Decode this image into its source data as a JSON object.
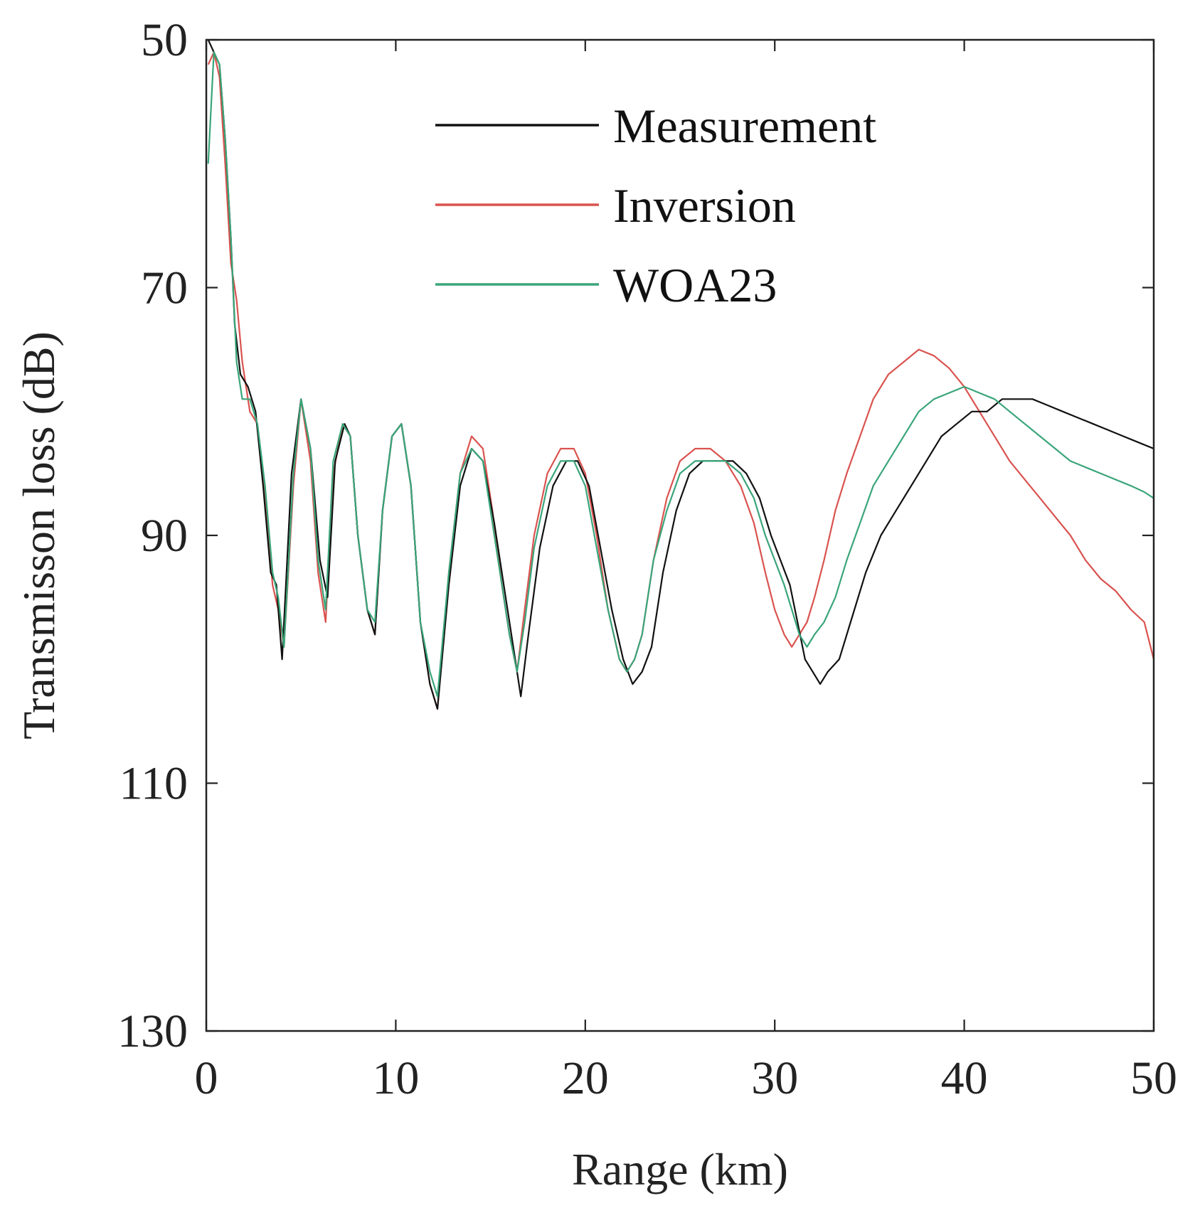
{
  "chart_data": {
    "type": "line",
    "title": "",
    "xlabel": "Range (km)",
    "ylabel": "Transmisson loss (dB)",
    "xlim": [
      0,
      50
    ],
    "ylim": [
      50,
      130
    ],
    "y_reversed": true,
    "xticks": [
      0,
      10,
      20,
      30,
      40,
      50
    ],
    "yticks": [
      50,
      70,
      90,
      110,
      130
    ],
    "xtick_labels": [
      "0",
      "10",
      "20",
      "30",
      "40",
      "50"
    ],
    "ytick_labels": [
      "50",
      "70",
      "90",
      "110",
      "130"
    ],
    "grid": false,
    "legend_position": "top-center",
    "legend": [
      "Measurement",
      "Inversion",
      "WOA23"
    ],
    "colors": {
      "Measurement": "#111111",
      "Inversion": "#d9534f",
      "WOA23": "#3aa57a"
    },
    "series": [
      {
        "name": "Measurement",
        "x": [
          0.1,
          0.4,
          0.7,
          1.0,
          1.3,
          1.5,
          1.8,
          2.2,
          2.6,
          3.0,
          3.4,
          3.7,
          4.0,
          4.5,
          5.0,
          5.5,
          6.0,
          6.4,
          6.8,
          7.3,
          7.6,
          8.0,
          8.5,
          8.9,
          9.3,
          9.8,
          10.3,
          10.8,
          11.3,
          11.8,
          12.2,
          12.8,
          13.4,
          14.0,
          14.6,
          15.2,
          15.7,
          16.2,
          16.6,
          17.0,
          17.6,
          18.3,
          19.0,
          19.6,
          20.2,
          20.8,
          21.4,
          22.0,
          22.5,
          23.0,
          23.5,
          24.1,
          24.8,
          25.5,
          26.2,
          27.0,
          27.8,
          28.5,
          29.2,
          29.8,
          30.3,
          30.8,
          31.2,
          31.6,
          32.0,
          32.4,
          32.8,
          33.4,
          34.0,
          34.8,
          35.6,
          36.4,
          37.2,
          38.0,
          38.8,
          39.6,
          40.4,
          41.2,
          42.0,
          42.8,
          43.6,
          44.4,
          45.2,
          46.0,
          46.8,
          47.6,
          48.4,
          49.2,
          50.0
        ],
        "y": [
          50,
          51,
          52,
          58,
          66,
          73,
          77,
          78,
          80,
          86,
          93,
          94,
          100,
          85,
          79,
          83,
          92,
          95,
          84,
          81,
          82,
          90,
          96,
          98,
          88,
          82,
          81,
          86,
          97,
          102,
          104,
          94,
          86,
          83,
          84,
          89,
          94,
          99,
          103,
          98,
          91,
          86,
          84,
          84,
          86,
          91,
          96,
          100,
          102,
          101,
          99,
          93,
          88,
          85,
          84,
          84,
          84,
          85,
          87,
          90,
          92,
          94,
          97,
          100,
          101,
          102,
          101,
          100,
          97,
          93,
          90,
          88,
          86,
          84,
          82,
          81,
          80,
          80,
          79,
          79,
          79,
          79.5,
          80,
          80.5,
          81,
          81.5,
          82,
          82.5,
          83
        ]
      },
      {
        "name": "Inversion",
        "x": [
          0.1,
          0.4,
          0.7,
          1.0,
          1.3,
          1.6,
          1.9,
          2.3,
          2.7,
          3.1,
          3.5,
          3.8,
          4.1,
          4.6,
          5.0,
          5.5,
          5.9,
          6.3,
          6.7,
          7.2,
          7.6,
          8.0,
          8.5,
          8.9,
          9.3,
          9.8,
          10.3,
          10.8,
          11.3,
          11.8,
          12.2,
          12.8,
          13.4,
          14.0,
          14.6,
          15.1,
          15.6,
          16.0,
          16.4,
          16.8,
          17.3,
          18.0,
          18.7,
          19.4,
          20.0,
          20.6,
          21.2,
          21.8,
          22.2,
          22.6,
          23.0,
          23.6,
          24.3,
          25.0,
          25.8,
          26.6,
          27.4,
          28.2,
          28.9,
          29.5,
          30.0,
          30.5,
          30.9,
          31.3,
          31.7,
          32.1,
          32.6,
          33.2,
          33.8,
          34.5,
          35.2,
          36.0,
          36.8,
          37.6,
          38.4,
          39.2,
          40.0,
          40.8,
          41.6,
          42.4,
          43.2,
          44.0,
          44.8,
          45.6,
          46.4,
          47.2,
          48.0,
          48.8,
          49.5,
          50.0
        ],
        "y": [
          52,
          51,
          53,
          60,
          68,
          71,
          76,
          80,
          81,
          87,
          94,
          96,
          99,
          86,
          79,
          84,
          93,
          97,
          85,
          81,
          82,
          90,
          96,
          98,
          88,
          82,
          81,
          86,
          97,
          102,
          104,
          93,
          85,
          82,
          83,
          88,
          94,
          98,
          101,
          96,
          90,
          85,
          83,
          83,
          85,
          90,
          96,
          100,
          101,
          100,
          98,
          92,
          87,
          84,
          83,
          83,
          84,
          86,
          89,
          93,
          96,
          98,
          99,
          98,
          97,
          95,
          92,
          88,
          85,
          82,
          79,
          77,
          76,
          75,
          75.5,
          76.5,
          78,
          80,
          82,
          84,
          85.5,
          87,
          88.5,
          90,
          92,
          93.5,
          94.5,
          96,
          97,
          100
        ]
      },
      {
        "name": "WOA23",
        "x": [
          0.1,
          0.4,
          0.7,
          1.0,
          1.3,
          1.6,
          1.9,
          2.3,
          2.7,
          3.1,
          3.5,
          3.8,
          4.1,
          4.6,
          5.0,
          5.5,
          5.9,
          6.3,
          6.7,
          7.2,
          7.6,
          8.0,
          8.5,
          8.9,
          9.3,
          9.8,
          10.3,
          10.8,
          11.3,
          11.8,
          12.2,
          12.8,
          13.4,
          14.0,
          14.6,
          15.1,
          15.6,
          16.0,
          16.4,
          16.8,
          17.3,
          18.0,
          18.7,
          19.4,
          20.0,
          20.6,
          21.2,
          21.8,
          22.2,
          22.6,
          23.0,
          23.6,
          24.3,
          25.0,
          25.8,
          26.6,
          27.4,
          28.2,
          28.9,
          29.5,
          30.0,
          30.5,
          30.9,
          31.3,
          31.7,
          32.1,
          32.6,
          33.2,
          33.8,
          34.5,
          35.2,
          36.0,
          36.8,
          37.6,
          38.4,
          39.2,
          40.0,
          40.8,
          41.6,
          42.4,
          43.2,
          44.0,
          44.8,
          45.6,
          46.4,
          47.2,
          48.0,
          48.8,
          49.5,
          50.0
        ],
        "y": [
          60,
          51,
          52,
          58,
          66,
          76,
          79,
          79,
          81,
          86,
          93,
          95,
          99,
          85,
          79,
          83,
          92,
          96,
          84,
          81,
          82,
          90,
          96,
          97,
          88,
          82,
          81,
          86,
          97,
          101,
          103,
          93,
          85,
          83,
          84,
          89,
          94,
          98,
          101,
          97,
          91,
          86,
          84,
          84,
          86,
          91,
          96,
          100,
          101,
          100,
          98,
          92,
          88,
          85,
          84,
          84,
          84,
          85,
          87,
          90,
          92,
          94,
          96,
          98,
          99,
          98,
          97,
          95,
          92,
          89,
          86,
          84,
          82,
          80,
          79,
          78.5,
          78,
          78.5,
          79,
          80,
          81,
          82,
          83,
          84,
          84.5,
          85,
          85.5,
          86,
          86.5,
          87
        ]
      }
    ]
  }
}
